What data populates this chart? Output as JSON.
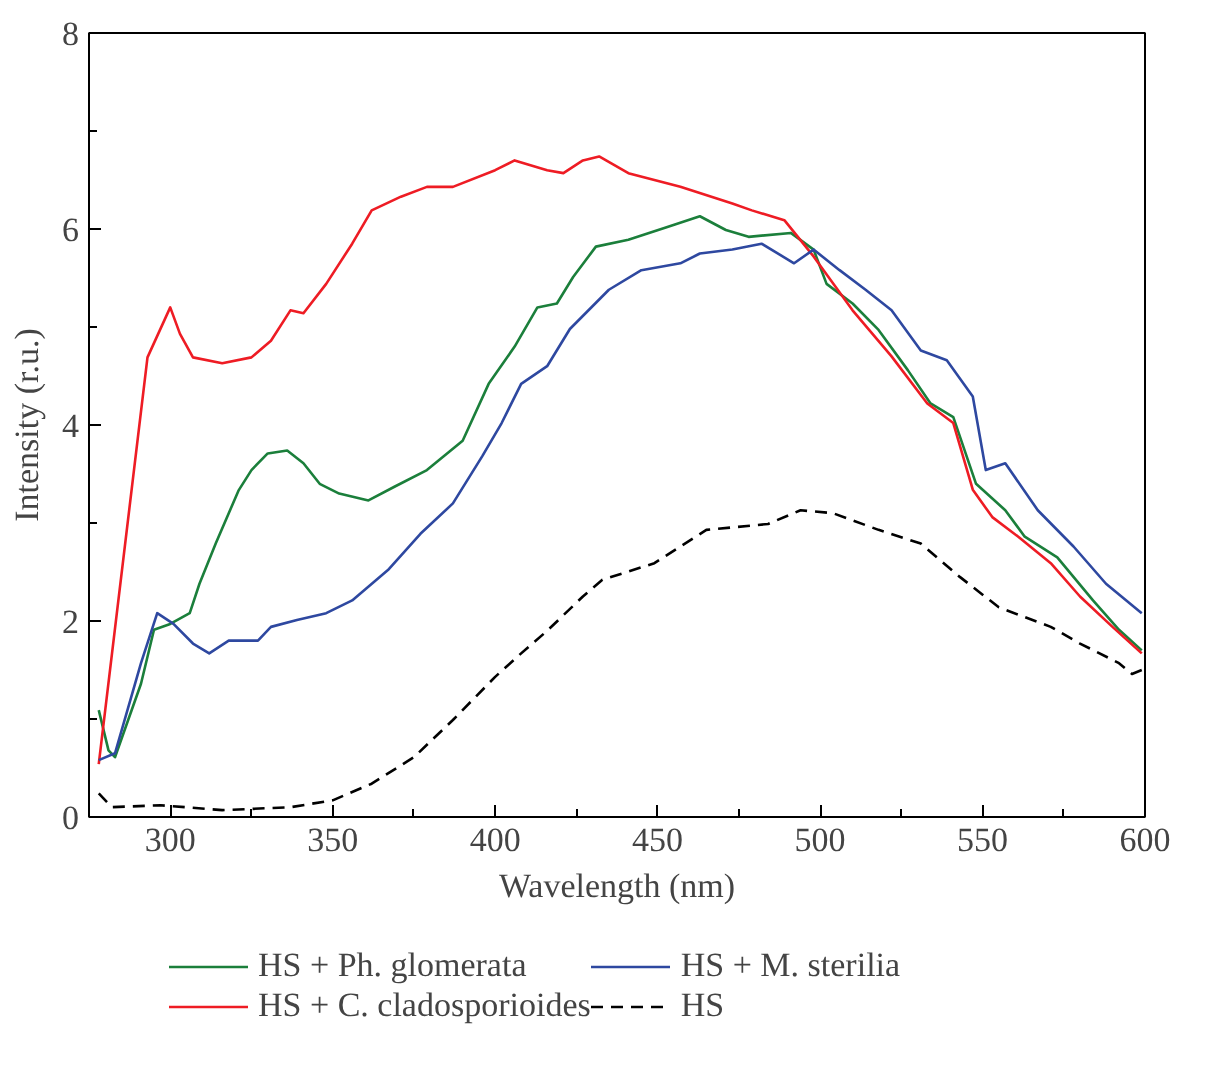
{
  "chart_data": {
    "type": "line",
    "xlabel": "Wavelength (nm)",
    "ylabel": "Intensity (r.u.)",
    "xlim": [
      275,
      600
    ],
    "ylim": [
      0,
      8
    ],
    "xticks": [
      300,
      {
        "value": 325,
        "label": null
      },
      350,
      {
        "value": 375,
        "label": null
      },
      400,
      {
        "value": 425,
        "label": null
      },
      450,
      {
        "value": 475,
        "label": null
      },
      500,
      {
        "value": 525,
        "label": null
      },
      550,
      {
        "value": 575,
        "label": null
      },
      600
    ],
    "yticks": [
      0,
      {
        "value": 1,
        "label": null
      },
      2,
      {
        "value": 3,
        "label": null
      },
      4,
      {
        "value": 5,
        "label": null
      },
      6,
      {
        "value": 7,
        "label": null
      },
      8
    ],
    "grid": false,
    "legend": "bottom",
    "marker": "none",
    "series": [
      {
        "name": "HS + Ph. glomerata",
        "color": "#1b7f3b",
        "line_style": "solid",
        "x": [
          278,
          281,
          283,
          291,
          295,
          300,
          306,
          309,
          314,
          321,
          325,
          330,
          336,
          341,
          346,
          352,
          361,
          369,
          379,
          390,
          398,
          406,
          413,
          419,
          424,
          431,
          441,
          453,
          463,
          471,
          478,
          491,
          498,
          502,
          510,
          518,
          527,
          534,
          541,
          548,
          557,
          563,
          573,
          584,
          592,
          599
        ],
        "values": [
          1.09,
          0.68,
          0.61,
          1.36,
          1.91,
          1.97,
          2.08,
          2.38,
          2.79,
          3.33,
          3.54,
          3.71,
          3.74,
          3.61,
          3.4,
          3.3,
          3.23,
          3.37,
          3.54,
          3.84,
          4.42,
          4.8,
          5.2,
          5.24,
          5.51,
          5.82,
          5.89,
          6.02,
          6.13,
          5.99,
          5.92,
          5.96,
          5.79,
          5.44,
          5.24,
          4.97,
          4.56,
          4.22,
          4.08,
          3.4,
          3.13,
          2.86,
          2.65,
          2.21,
          1.91,
          1.7
        ]
      },
      {
        "name": "HS + C. cladosporioides",
        "color": "#ee1c24",
        "line_style": "solid",
        "x": [
          278,
          293,
          300,
          303,
          307,
          316,
          325,
          331,
          337,
          341,
          348,
          356,
          362,
          371,
          379,
          387,
          400,
          406,
          416,
          421,
          427,
          432,
          441,
          457,
          473,
          479,
          489,
          498,
          510,
          522,
          533,
          541,
          547,
          553,
          561,
          571,
          580,
          590,
          599
        ],
        "values": [
          0.54,
          4.69,
          5.2,
          4.93,
          4.69,
          4.63,
          4.69,
          4.86,
          5.17,
          5.14,
          5.44,
          5.85,
          6.19,
          6.33,
          6.43,
          6.43,
          6.6,
          6.7,
          6.6,
          6.57,
          6.7,
          6.74,
          6.57,
          6.43,
          6.26,
          6.19,
          6.09,
          5.72,
          5.17,
          4.7,
          4.22,
          4.02,
          3.34,
          3.06,
          2.86,
          2.59,
          2.25,
          1.94,
          1.67
        ]
      },
      {
        "name": "HS + M. sterilia",
        "color": "#2e48a0",
        "line_style": "solid",
        "x": [
          278,
          283,
          291,
          296,
          301,
          307,
          312,
          318,
          327,
          331,
          339,
          348,
          356,
          367,
          377,
          387,
          396,
          402,
          408,
          416,
          423,
          435,
          445,
          457,
          463,
          473,
          482,
          492,
          498,
          506,
          514,
          522,
          531,
          539,
          547,
          551,
          557,
          567,
          578,
          588,
          599
        ],
        "values": [
          0.58,
          0.65,
          1.57,
          2.08,
          1.97,
          1.77,
          1.67,
          1.8,
          1.8,
          1.94,
          2.01,
          2.08,
          2.21,
          2.52,
          2.89,
          3.2,
          3.68,
          4.02,
          4.42,
          4.6,
          4.98,
          5.38,
          5.58,
          5.65,
          5.75,
          5.79,
          5.85,
          5.65,
          5.79,
          5.58,
          5.38,
          5.17,
          4.76,
          4.66,
          4.29,
          3.54,
          3.61,
          3.13,
          2.76,
          2.38,
          2.08
        ]
      },
      {
        "name": "HS",
        "color": "#000000",
        "line_style": "dashed",
        "x": [
          278,
          282,
          297,
          316,
          337,
          350,
          362,
          375,
          387,
          400,
          408,
          416,
          427,
          433,
          449,
          465,
          484,
          494,
          504,
          518,
          531,
          543,
          555,
          571,
          580,
          592,
          596,
          599
        ],
        "values": [
          0.24,
          0.1,
          0.12,
          0.07,
          0.1,
          0.17,
          0.34,
          0.61,
          0.99,
          1.43,
          1.67,
          1.9,
          2.25,
          2.42,
          2.59,
          2.93,
          2.99,
          3.13,
          3.1,
          2.93,
          2.79,
          2.45,
          2.14,
          1.94,
          1.77,
          1.57,
          1.46,
          1.5
        ]
      }
    ]
  }
}
